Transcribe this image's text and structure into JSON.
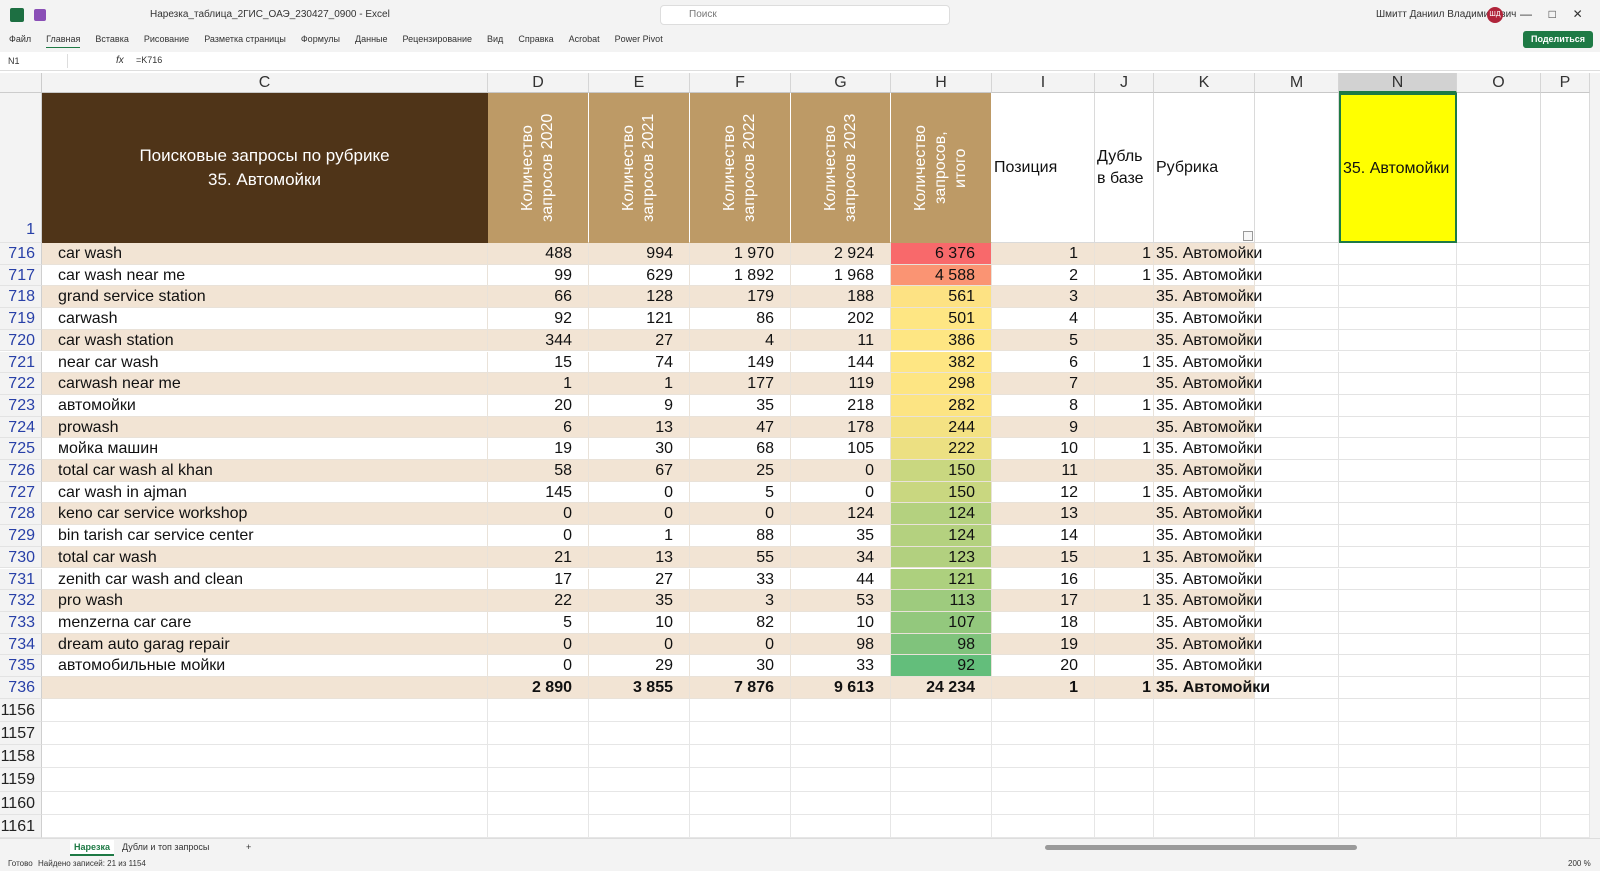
{
  "window": {
    "file_title": "Нарезка_таблица_2ГИС_ОАЭ_230427_0900 - Excel",
    "search": "Поиск",
    "user": "Шмитт Даниил Владимирович",
    "avatar": "ШД",
    "share": "Поделиться"
  },
  "menu": [
    "Файл",
    "Главная",
    "Вставка",
    "Рисование",
    "Разметка страницы",
    "Формулы",
    "Данные",
    "Рецензирование",
    "Вид",
    "Справка",
    "Acrobat",
    "Power Pivot"
  ],
  "formula_bar": {
    "name_box": "N1",
    "fx": "fx",
    "formula": "=K716"
  },
  "columns": [
    "C",
    "D",
    "E",
    "F",
    "G",
    "H",
    "I",
    "J",
    "K",
    "M",
    "N",
    "O",
    "P"
  ],
  "header": {
    "row": "1",
    "cells": [
      "Поисковые запросы по рубрике\n35. Автомойки",
      "Количество запросов 2020",
      "Количество запросов 2021",
      "Количество запросов 2022",
      "Количество запросов 2023",
      "Количество запросов, итого",
      "Позиция",
      "Дубль в базе",
      "Рубрика"
    ],
    "n": "35. Автомойки"
  },
  "rows": [
    [
      "716",
      "car wash",
      "488",
      "994",
      "1 970",
      "2 924",
      "6 376",
      "1",
      "1",
      "35. Автомойки"
    ],
    [
      "717",
      "car wash near me",
      "99",
      "629",
      "1 892",
      "1 968",
      "4 588",
      "2",
      "1",
      "35. Автомойки"
    ],
    [
      "718",
      "grand service station",
      "66",
      "128",
      "179",
      "188",
      "561",
      "3",
      null,
      "35. Автомойки"
    ],
    [
      "719",
      "carwash",
      "92",
      "121",
      "86",
      "202",
      "501",
      "4",
      null,
      "35. Автомойки"
    ],
    [
      "720",
      "car wash station",
      "344",
      "27",
      "4",
      "11",
      "386",
      "5",
      null,
      "35. Автомойки"
    ],
    [
      "721",
      "near car wash",
      "15",
      "74",
      "149",
      "144",
      "382",
      "6",
      "1",
      "35. Автомойки"
    ],
    [
      "722",
      "carwash near me",
      "1",
      "1",
      "177",
      "119",
      "298",
      "7",
      null,
      "35. Автомойки"
    ],
    [
      "723",
      "автомойки",
      "20",
      "9",
      "35",
      "218",
      "282",
      "8",
      "1",
      "35. Автомойки"
    ],
    [
      "724",
      "prowash",
      "6",
      "13",
      "47",
      "178",
      "244",
      "9",
      null,
      "35. Автомойки"
    ],
    [
      "725",
      "мойка машин",
      "19",
      "30",
      "68",
      "105",
      "222",
      "10",
      "1",
      "35. Автомойки"
    ],
    [
      "726",
      "total car wash al khan",
      "58",
      "67",
      "25",
      "0",
      "150",
      "11",
      null,
      "35. Автомойки"
    ],
    [
      "727",
      "car wash in ajman",
      "145",
      "0",
      "5",
      "0",
      "150",
      "12",
      "1",
      "35. Автомойки"
    ],
    [
      "728",
      "keno car service workshop",
      "0",
      "0",
      "0",
      "124",
      "124",
      "13",
      null,
      "35. Автомойки"
    ],
    [
      "729",
      "bin tarish car service center",
      "0",
      "1",
      "88",
      "35",
      "124",
      "14",
      null,
      "35. Автомойки"
    ],
    [
      "730",
      "total car wash",
      "21",
      "13",
      "55",
      "34",
      "123",
      "15",
      "1",
      "35. Автомойки"
    ],
    [
      "731",
      "zenith car wash and clean",
      "17",
      "27",
      "33",
      "44",
      "121",
      "16",
      null,
      "35. Автомойки"
    ],
    [
      "732",
      "pro wash",
      "22",
      "35",
      "3",
      "53",
      "113",
      "17",
      "1",
      "35. Автомойки"
    ],
    [
      "733",
      "menzerna car care",
      "5",
      "10",
      "82",
      "10",
      "107",
      "18",
      null,
      "35. Автомойки"
    ],
    [
      "734",
      "dream auto garag repair",
      "0",
      "0",
      "0",
      "98",
      "98",
      "19",
      null,
      "35. Автомойки"
    ],
    [
      "735",
      "автомобильные мойки",
      "0",
      "29",
      "30",
      "33",
      "92",
      "20",
      null,
      "35. Автомойки"
    ],
    [
      "736",
      null,
      "2 890",
      "3 855",
      "7 876",
      "9 613",
      "24 234",
      "1",
      "1",
      "35. Автомойки"
    ]
  ],
  "h_colors": [
    "#f8696b",
    "#fa9473",
    "#fde283",
    "#fee683",
    "#fee683",
    "#fee683",
    "#fde583",
    "#fce483",
    "#f4e283",
    "#ece082",
    "#c9d780",
    "#c9d780",
    "#b4d17f",
    "#b4d17f",
    "#b2d07f",
    "#add07e",
    "#9ecb7e",
    "#93c87d",
    "#80c37c",
    "#63be7b"
  ],
  "empty_rows": [
    "1156",
    "1157",
    "1158",
    "1159",
    "1160",
    "1161"
  ],
  "tabs": [
    "Нарезка",
    "Дубли и топ запросы",
    "+"
  ],
  "status": {
    "ready": "Готово",
    "found": "Найдено записей: 21 из 1154",
    "zoom": "200 %"
  }
}
